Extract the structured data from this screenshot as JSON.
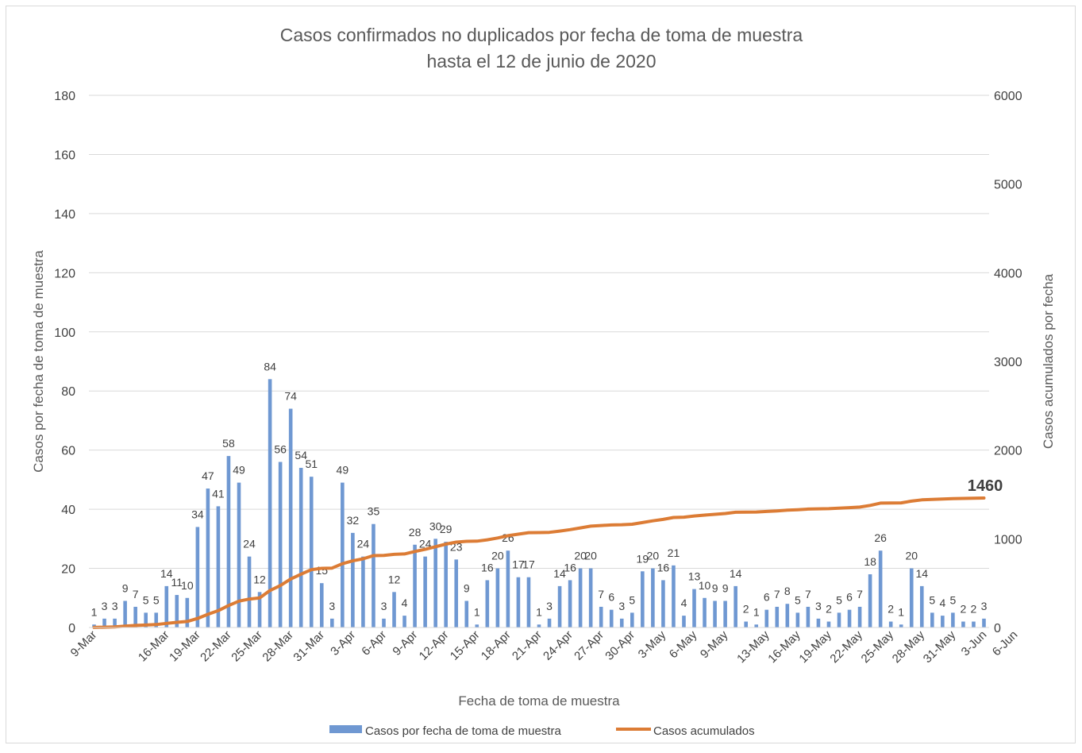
{
  "chart_data": {
    "type": "bar",
    "title": "Casos confirmados no duplicados por fecha de toma de muestra",
    "subtitle": "hasta el 12 de junio de 2020",
    "xlabel": "Fecha de toma de muestra",
    "ylabel": "Casos por fecha de toma de muestra",
    "y2label": "Casos acumulados por fecha",
    "ylim": [
      0,
      180
    ],
    "y2lim": [
      0,
      6000
    ],
    "yticks": [
      "0",
      "20",
      "40",
      "60",
      "80",
      "100",
      "120",
      "140",
      "160",
      "180"
    ],
    "y2ticks": [
      "0",
      "1000",
      "2000",
      "3000",
      "4000",
      "5000",
      "6000"
    ],
    "grid": true,
    "legend_position": "bottom",
    "colors": {
      "bar": "#6f98d2",
      "line": "#dc7c35",
      "grid": "#d9d9d9",
      "text": "#404040",
      "title": "#595959"
    },
    "start_date": "2020-03-09",
    "x_tick_labels": [
      "9-Mar",
      "16-Mar",
      "19-Mar",
      "22-Mar",
      "25-Mar",
      "28-Mar",
      "31-Mar",
      "3-Apr",
      "6-Apr",
      "9-Apr",
      "12-Apr",
      "15-Apr",
      "18-Apr",
      "21-Apr",
      "24-Apr",
      "27-Apr",
      "30-Apr",
      "3-May",
      "6-May",
      "9-May",
      "13-May",
      "16-May",
      "19-May",
      "22-May",
      "25-May",
      "28-May",
      "31-May",
      "3-Jun",
      "6-Jun"
    ],
    "series": [
      {
        "name": "Casos por fecha de toma de muestra",
        "kind": "bar",
        "axis": "left",
        "values": [
          1,
          3,
          3,
          9,
          7,
          5,
          5,
          14,
          11,
          10,
          34,
          47,
          41,
          58,
          49,
          24,
          12,
          84,
          56,
          74,
          54,
          51,
          15,
          3,
          49,
          32,
          24,
          35,
          3,
          12,
          4,
          28,
          24,
          30,
          29,
          23,
          9,
          1,
          16,
          20,
          26,
          17,
          17,
          1,
          3,
          14,
          16,
          20,
          20,
          7,
          6,
          3,
          5,
          19,
          20,
          16,
          21,
          4,
          13,
          10,
          9,
          9,
          14,
          2,
          1,
          6,
          7,
          8,
          5,
          7,
          3,
          2,
          5,
          6,
          7,
          18,
          26,
          2,
          1,
          20,
          14,
          5,
          4,
          5,
          2,
          2,
          3
        ],
        "labels": [
          "1",
          "3",
          "3",
          "9",
          "7",
          "5",
          "5",
          "14",
          "11",
          "10",
          "34",
          "47",
          "41",
          "58",
          "49",
          "24",
          "12",
          "84",
          "56",
          "74",
          "54",
          "51",
          "15",
          "3",
          "49",
          "32",
          "24",
          "35",
          "3",
          "12",
          "4",
          "28",
          "24",
          "30",
          "29",
          "23",
          "9",
          "1",
          "16",
          "20",
          "26",
          "17",
          "17",
          "1",
          "3",
          "14",
          "16",
          "20",
          "20",
          "7",
          "6",
          "3",
          "5",
          "19",
          "20",
          "16",
          "21",
          "4",
          "13",
          "10",
          "9",
          "9",
          "14",
          "2",
          "1",
          "6",
          "7",
          "8",
          "5",
          "7",
          "3",
          "2",
          "5",
          "6",
          "7",
          "18",
          "26",
          "2",
          "1",
          "20",
          "14",
          "5",
          "4",
          "5",
          "2",
          "2",
          "3"
        ]
      },
      {
        "name": "Casos acumulados",
        "kind": "line",
        "axis": "right",
        "final_label": "1460"
      }
    ]
  }
}
